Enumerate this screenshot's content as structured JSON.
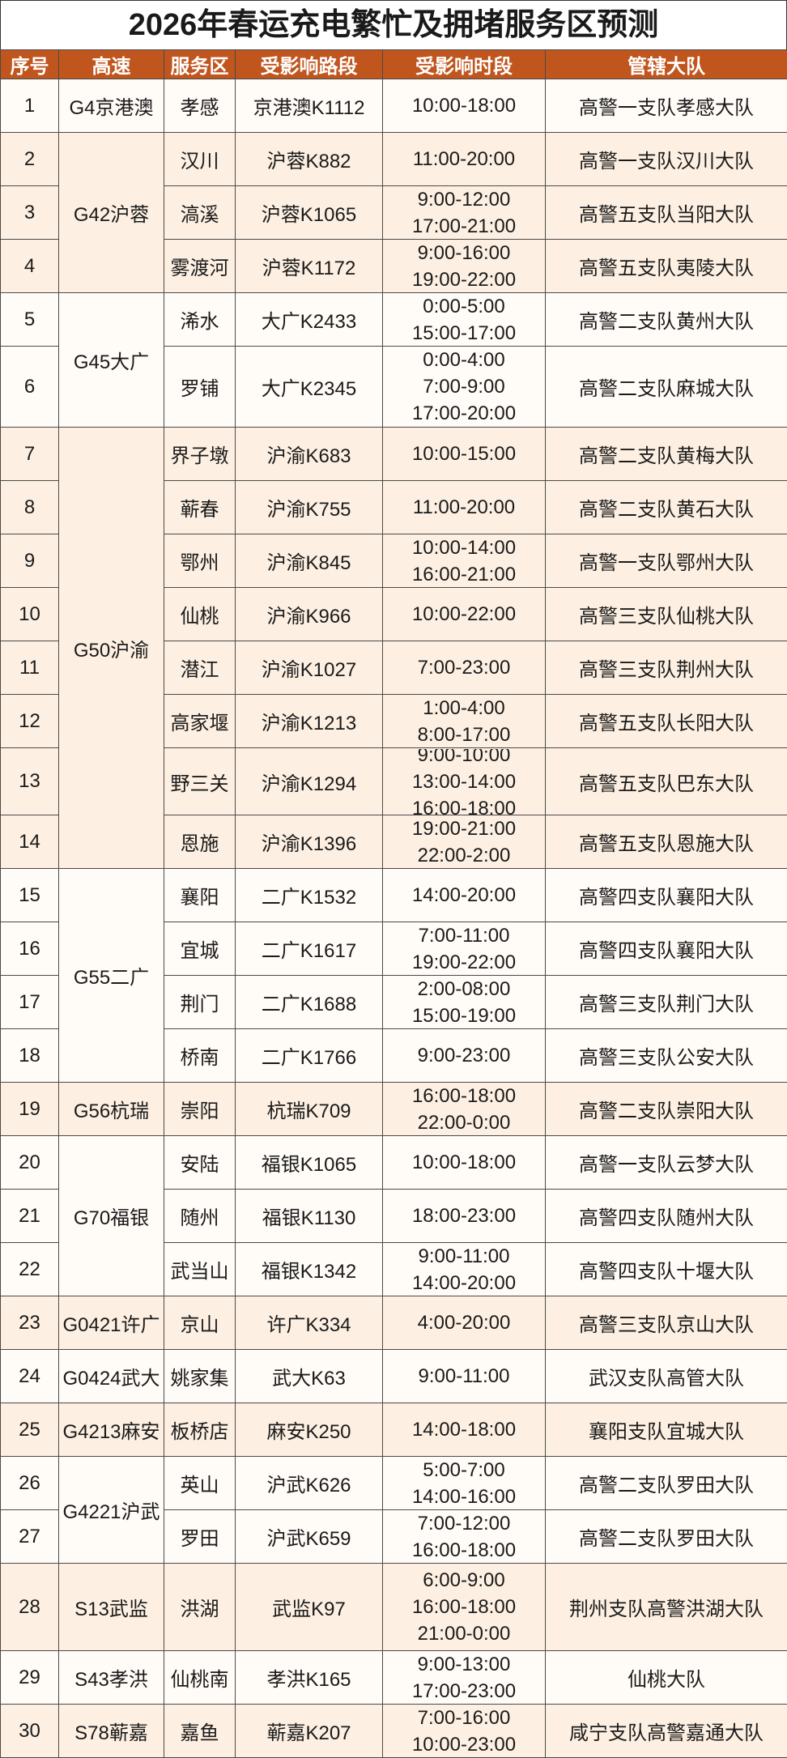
{
  "title": "2026年春运充电繁忙及拥堵服务区预测",
  "headers": [
    "序号",
    "高速",
    "服务区",
    "受影响路段",
    "受影响时段",
    "管辖大队"
  ],
  "colors": {
    "header_bg": "#C0561E",
    "row_light": "#FFFBF7",
    "row_beige": "#FDF0E2"
  },
  "groups": [
    {
      "highway": "G4京港澳",
      "rows": [
        {
          "no": "1",
          "area": "孝感",
          "section": "京港澳K1112",
          "times": [
            "10:00-18:00"
          ],
          "unit": "高警一支队孝感大队"
        }
      ]
    },
    {
      "highway": "G42沪蓉",
      "rows": [
        {
          "no": "2",
          "area": "汉川",
          "section": "沪蓉K882",
          "times": [
            "11:00-20:00"
          ],
          "unit": "高警一支队汉川大队"
        },
        {
          "no": "3",
          "area": "滈溪",
          "section": "沪蓉K1065",
          "times": [
            "9:00-12:00",
            "17:00-21:00"
          ],
          "unit": "高警五支队当阳大队"
        },
        {
          "no": "4",
          "area": "雾渡河",
          "section": "沪蓉K1172",
          "times": [
            "9:00-16:00",
            "19:00-22:00"
          ],
          "unit": "高警五支队夷陵大队"
        }
      ]
    },
    {
      "highway": "G45大广",
      "rows": [
        {
          "no": "5",
          "area": "浠水",
          "section": "大广K2433",
          "times": [
            "0:00-5:00",
            "15:00-17:00"
          ],
          "unit": "高警二支队黄州大队"
        },
        {
          "no": "6",
          "area": "罗铺",
          "section": "大广K2345",
          "times": [
            "0:00-4:00",
            "7:00-9:00",
            "17:00-20:00"
          ],
          "unit": "高警二支队麻城大队"
        }
      ]
    },
    {
      "highway": "G50沪渝",
      "rows": [
        {
          "no": "7",
          "area": "界子墩",
          "section": "沪渝K683",
          "times": [
            "10:00-15:00"
          ],
          "unit": "高警二支队黄梅大队"
        },
        {
          "no": "8",
          "area": "蕲春",
          "section": "沪渝K755",
          "times": [
            "11:00-20:00"
          ],
          "unit": "高警二支队黄石大队"
        },
        {
          "no": "9",
          "area": "鄂州",
          "section": "沪渝K845",
          "times": [
            "10:00-14:00",
            "16:00-21:00"
          ],
          "unit": "高警一支队鄂州大队"
        },
        {
          "no": "10",
          "area": "仙桃",
          "section": "沪渝K966",
          "times": [
            "10:00-22:00"
          ],
          "unit": "高警三支队仙桃大队"
        },
        {
          "no": "11",
          "area": "潜江",
          "section": "沪渝K1027",
          "times": [
            "7:00-23:00"
          ],
          "unit": "高警三支队荆州大队"
        },
        {
          "no": "12",
          "area": "高家堰",
          "section": "沪渝K1213",
          "times": [
            "1:00-4:00",
            "8:00-17:00"
          ],
          "unit": "高警五支队长阳大队"
        },
        {
          "no": "13",
          "area": "野三关",
          "section": "沪渝K1294",
          "times": [
            "9:00-10:00",
            "13:00-14:00",
            "16:00-18:00"
          ],
          "unit": "高警五支队巴东大队"
        },
        {
          "no": "14",
          "area": "恩施",
          "section": "沪渝K1396",
          "times": [
            "19:00-21:00",
            "22:00-2:00"
          ],
          "unit": "高警五支队恩施大队"
        }
      ]
    },
    {
      "highway": "G55二广",
      "rows": [
        {
          "no": "15",
          "area": "襄阳",
          "section": "二广K1532",
          "times": [
            "14:00-20:00"
          ],
          "unit": "高警四支队襄阳大队"
        },
        {
          "no": "16",
          "area": "宜城",
          "section": "二广K1617",
          "times": [
            "7:00-11:00",
            "19:00-22:00"
          ],
          "unit": "高警四支队襄阳大队"
        },
        {
          "no": "17",
          "area": "荆门",
          "section": "二广K1688",
          "times": [
            "2:00-08:00",
            "15:00-19:00"
          ],
          "unit": "高警三支队荆门大队"
        },
        {
          "no": "18",
          "area": "桥南",
          "section": "二广K1766",
          "times": [
            "9:00-23:00"
          ],
          "unit": "高警三支队公安大队"
        }
      ]
    },
    {
      "highway": "G56杭瑞",
      "rows": [
        {
          "no": "19",
          "area": "崇阳",
          "section": "杭瑞K709",
          "times": [
            "16:00-18:00",
            "22:00-0:00"
          ],
          "unit": "高警二支队崇阳大队"
        }
      ]
    },
    {
      "highway": "G70福银",
      "rows": [
        {
          "no": "20",
          "area": "安陆",
          "section": "福银K1065",
          "times": [
            "10:00-18:00"
          ],
          "unit": "高警一支队云梦大队"
        },
        {
          "no": "21",
          "area": "随州",
          "section": "福银K1130",
          "times": [
            "18:00-23:00"
          ],
          "unit": "高警四支队随州大队"
        },
        {
          "no": "22",
          "area": "武当山",
          "section": "福银K1342",
          "times": [
            "9:00-11:00",
            "14:00-20:00"
          ],
          "unit": "高警四支队十堰大队"
        }
      ]
    },
    {
      "highway": "G0421许广",
      "rows": [
        {
          "no": "23",
          "area": "京山",
          "section": "许广K334",
          "times": [
            "4:00-20:00"
          ],
          "unit": "高警三支队京山大队"
        }
      ]
    },
    {
      "highway": "G0424武大",
      "rows": [
        {
          "no": "24",
          "area": "姚家集",
          "section": "武大K63",
          "times": [
            "9:00-11:00"
          ],
          "unit": "武汉支队高管大队"
        }
      ]
    },
    {
      "highway": "G4213麻安",
      "rows": [
        {
          "no": "25",
          "area": "板桥店",
          "section": "麻安K250",
          "times": [
            "14:00-18:00"
          ],
          "unit": "襄阳支队宜城大队"
        }
      ]
    },
    {
      "highway": "G4221沪武",
      "rows": [
        {
          "no": "26",
          "area": "英山",
          "section": "沪武K626",
          "times": [
            "5:00-7:00",
            "14:00-16:00"
          ],
          "unit": "高警二支队罗田大队"
        },
        {
          "no": "27",
          "area": "罗田",
          "section": "沪武K659",
          "times": [
            "7:00-12:00",
            "16:00-18:00"
          ],
          "unit": "高警二支队罗田大队"
        }
      ]
    },
    {
      "highway": "S13武监",
      "rows": [
        {
          "no": "28",
          "area": "洪湖",
          "section": "武监K97",
          "times": [
            "6:00-9:00",
            "16:00-18:00",
            "21:00-0:00"
          ],
          "unit": "荆州支队高警洪湖大队"
        }
      ]
    },
    {
      "highway": "S43孝洪",
      "rows": [
        {
          "no": "29",
          "area": "仙桃南",
          "section": "孝洪K165",
          "times": [
            "9:00-13:00",
            "17:00-23:00"
          ],
          "unit": "仙桃大队"
        }
      ]
    },
    {
      "highway": "S78蕲嘉",
      "rows": [
        {
          "no": "30",
          "area": "嘉鱼",
          "section": "蕲嘉K207",
          "times": [
            "7:00-16:00",
            "10:00-23:00"
          ],
          "unit": "咸宁支队高警嘉通大队"
        }
      ]
    }
  ]
}
